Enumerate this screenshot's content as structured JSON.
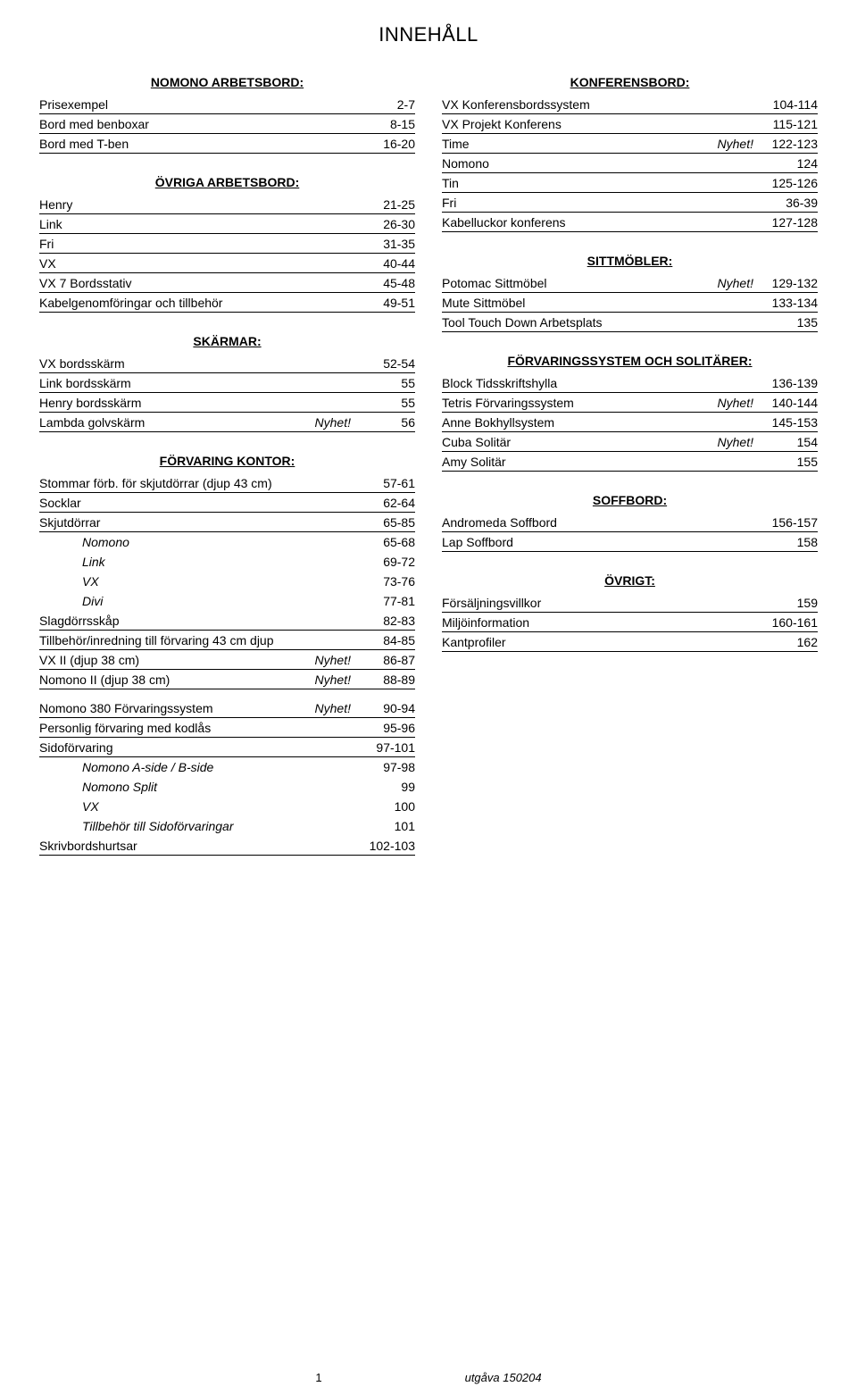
{
  "title": "INNEHÅLL",
  "left": {
    "sec1": {
      "header": "NOMONO ARBETSBORD:"
    },
    "r1": {
      "label": "Prisexempel",
      "value": "2-7"
    },
    "r2": {
      "label": "Bord med benboxar",
      "value": "8-15"
    },
    "r3": {
      "label": "Bord med T-ben",
      "value": "16-20"
    },
    "sec2": {
      "header": "ÖVRIGA ARBETSBORD:"
    },
    "r4": {
      "label": "Henry",
      "value": "21-25"
    },
    "r5": {
      "label": "Link",
      "value": "26-30"
    },
    "r6": {
      "label": "Fri",
      "value": "31-35"
    },
    "r7": {
      "label": "VX",
      "value": "40-44"
    },
    "r8": {
      "label": "VX 7 Bordsstativ",
      "value": "45-48"
    },
    "r9": {
      "label": "Kabelgenomföringar och tillbehör",
      "value": "49-51"
    },
    "sec3": {
      "header": "SKÄRMAR:"
    },
    "r10": {
      "label": "VX bordsskärm",
      "value": "52-54"
    },
    "r11": {
      "label": "Link bordsskärm",
      "value": "55"
    },
    "r12": {
      "label": "Henry bordsskärm",
      "value": "55"
    },
    "r13": {
      "label": "Lambda golvskärm",
      "note": "Nyhet!",
      "value": "56"
    },
    "sec4": {
      "header": "FÖRVARING KONTOR:"
    },
    "r14": {
      "label": "Stommar förb. för skjutdörrar (djup 43 cm)",
      "value": "57-61"
    },
    "r15": {
      "label": "Socklar",
      "value": "62-64"
    },
    "r16": {
      "label": "Skjutdörrar",
      "value": "65-85"
    },
    "r17": {
      "label": "Nomono",
      "value": "65-68"
    },
    "r18": {
      "label": "Link",
      "value": "69-72"
    },
    "r19": {
      "label": "VX",
      "value": "73-76"
    },
    "r20": {
      "label": "Divi",
      "value": "77-81"
    },
    "r21": {
      "label": "Slagdörrsskåp",
      "value": "82-83"
    },
    "r22": {
      "label": "Tillbehör/inredning till förvaring 43 cm djup",
      "value": "84-85"
    },
    "r23": {
      "label": "VX II (djup 38 cm)",
      "note": "Nyhet!",
      "value": "86-87"
    },
    "r24": {
      "label": "Nomono II (djup 38 cm)",
      "note": "Nyhet!",
      "value": "88-89"
    },
    "r25": {
      "label": "Nomono 380 Förvaringssystem",
      "note": "Nyhet!",
      "value": "90-94"
    },
    "r26": {
      "label": "Personlig förvaring med kodlås",
      "value": "95-96"
    },
    "r27": {
      "label": "Sidoförvaring",
      "value": "97-101"
    },
    "r28": {
      "label": "Nomono A-side / B-side",
      "value": "97-98"
    },
    "r29": {
      "label": "Nomono Split",
      "value": "99"
    },
    "r30": {
      "label": "VX",
      "value": "100"
    },
    "r31": {
      "label": "Tillbehör till Sidoförvaringar",
      "value": "101"
    },
    "r32": {
      "label": "Skrivbordshurtsar",
      "value": "102-103"
    }
  },
  "right": {
    "sec1": {
      "header": "KONFERENSBORD:"
    },
    "r1": {
      "label": "VX Konferensbordssystem",
      "value": "104-114"
    },
    "r2": {
      "label": "VX Projekt Konferens",
      "value": "115-121"
    },
    "r3": {
      "label": "Time",
      "note": "Nyhet!",
      "value": "122-123"
    },
    "r4": {
      "label": "Nomono",
      "value": "124"
    },
    "r5": {
      "label": "Tin",
      "value": "125-126"
    },
    "r6": {
      "label": "Fri",
      "value": "36-39"
    },
    "r7": {
      "label": "Kabelluckor konferens",
      "value": "127-128"
    },
    "sec2": {
      "header": "SITTMÖBLER:"
    },
    "r8": {
      "label": "Potomac Sittmöbel",
      "note": "Nyhet!",
      "value": "129-132"
    },
    "r9": {
      "label": "Mute Sittmöbel",
      "value": "133-134"
    },
    "r10": {
      "label": "Tool Touch Down Arbetsplats",
      "value": "135"
    },
    "sec3": {
      "header": "FÖRVARINGSSYSTEM OCH SOLITÄRER:"
    },
    "r11": {
      "label": "Block Tidsskriftshylla",
      "value": "136-139"
    },
    "r12": {
      "label": "Tetris Förvaringssystem",
      "note": "Nyhet!",
      "value": "140-144"
    },
    "r13": {
      "label": "Anne Bokhyllsystem",
      "value": "145-153"
    },
    "r14": {
      "label": "Cuba Solitär",
      "note": "Nyhet!",
      "value": "154"
    },
    "r15": {
      "label": "Amy Solitär",
      "value": "155"
    },
    "sec4": {
      "header": "SOFFBORD:"
    },
    "r16": {
      "label": "Andromeda Soffbord",
      "value": "156-157"
    },
    "r17": {
      "label": "Lap Soffbord",
      "value": "158"
    },
    "sec5": {
      "header": "ÖVRIGT:"
    },
    "r18": {
      "label": "Försäljningsvillkor",
      "value": "159"
    },
    "r19": {
      "label": "Miljöinformation",
      "value": "160-161"
    },
    "r20": {
      "label": "Kantprofiler",
      "value": "162"
    }
  },
  "footer": {
    "page": "1",
    "edition": "utgåva 150204"
  }
}
